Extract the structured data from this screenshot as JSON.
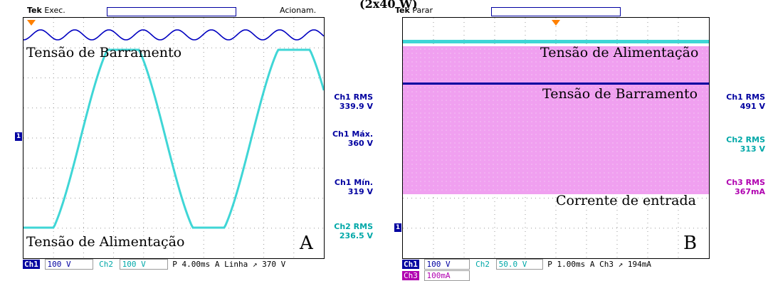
{
  "title": "(2x40 W)",
  "left": {
    "brand": "Tek",
    "status": "Exec.",
    "trigger_status": "Acionam.",
    "labels": {
      "bus": "Tensão de Barramento",
      "supply": "Tensão de Alimentação",
      "letter": "A"
    },
    "measurements": [
      {
        "label": "Ch1 RMS",
        "value": "339.9 V",
        "color": "#0000a0"
      },
      {
        "label": "Ch1 Máx.",
        "value": "360 V",
        "color": "#0000a0"
      },
      {
        "label": "Ch1 Mín.",
        "value": "319 V",
        "color": "#0000a0"
      },
      {
        "label": "Ch2 RMS",
        "value": "236.5 V",
        "color": "#00a8a8"
      }
    ],
    "bottom": {
      "ch1": "Ch1",
      "ch1_scale": "100 V",
      "ch2": "Ch2",
      "ch2_scale": "100 V",
      "timebase": "P 4.00ms",
      "trigger": "A  Linha ↗",
      "trigger_level": "370 V"
    },
    "marker": "1"
  },
  "right": {
    "brand": "Tek",
    "status": "Parar",
    "labels": {
      "supply": "Tensão de Alimentação",
      "bus": "Tensão de Barramento",
      "current": "Corrente de entrada",
      "letter": "B"
    },
    "measurements": [
      {
        "label": "Ch1 RMS",
        "value": "491 V",
        "color": "#0000a0"
      },
      {
        "label": "Ch2 RMS",
        "value": "313 V",
        "color": "#00a8a8"
      },
      {
        "label": "Ch3 RMS",
        "value": "367mA",
        "color": "#b000b0"
      }
    ],
    "bottom": {
      "ch1": "Ch1",
      "ch1_scale": "100 V",
      "ch2": "Ch2",
      "ch2_scale": "50.0 V",
      "timebase": "P 1.00ms",
      "trigger": "A  Ch3 ↗",
      "trigger_level": "194mA",
      "ch3": "Ch3",
      "ch3_scale": "100mA"
    },
    "marker": "1"
  },
  "colors": {
    "ch1": "#0000a0",
    "ch2": "#3fd6d6",
    "ch3": "#f0a0f0",
    "trigger": "#ff8000"
  }
}
